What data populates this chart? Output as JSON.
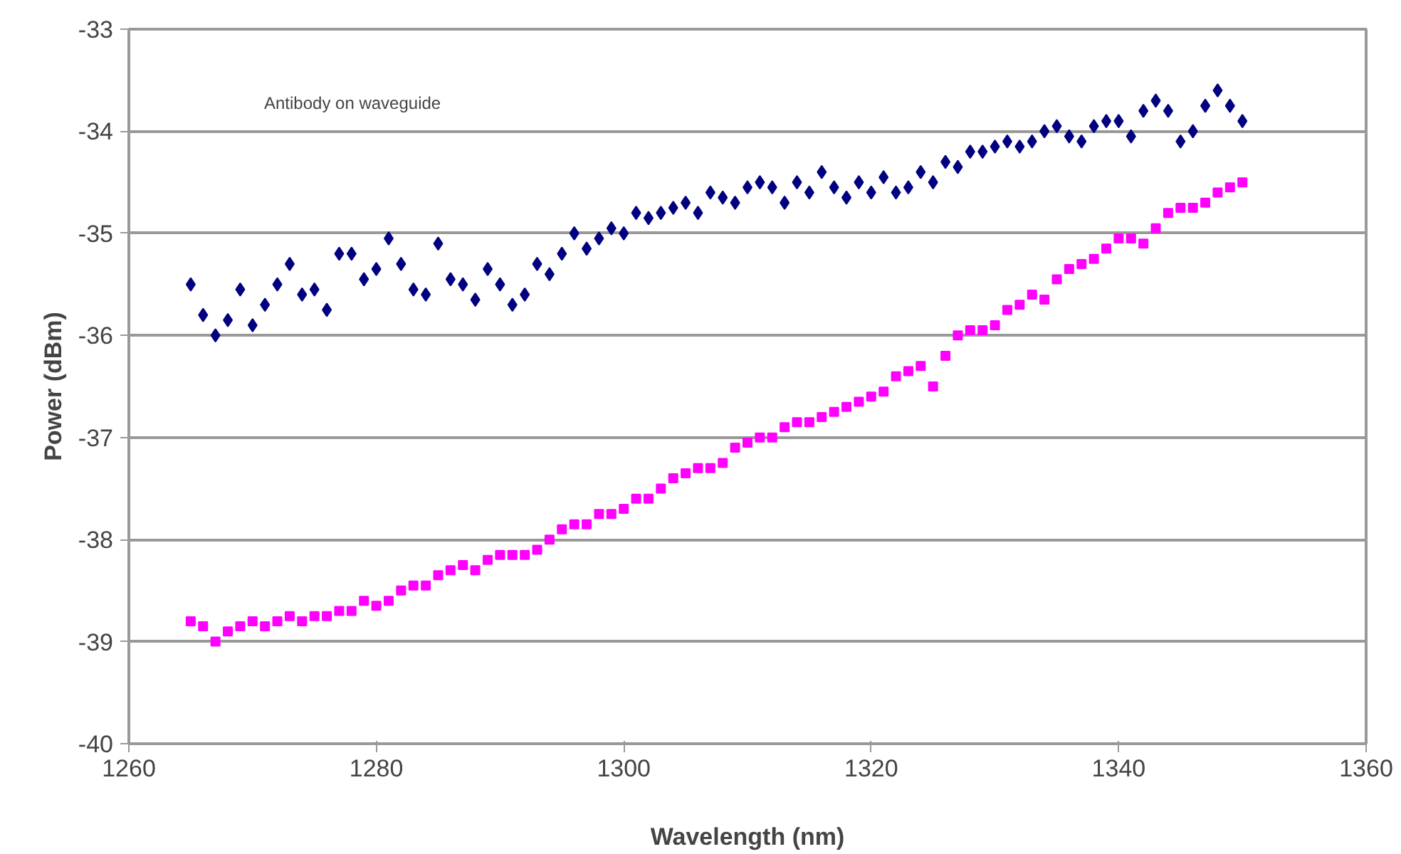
{
  "chart_data": {
    "type": "scatter",
    "xlabel": "Wavelength (nm)",
    "ylabel": "Power (dBm)",
    "xlim": [
      1260,
      1360
    ],
    "xticks": [
      1260,
      1280,
      1300,
      1320,
      1340,
      1360
    ],
    "ylim": [
      -40,
      -33
    ],
    "yticks": [
      -40,
      -39,
      -38,
      -37,
      -36,
      -35,
      -34,
      -33
    ],
    "grid": "y",
    "annotations": [
      "Antibody on waveguide"
    ],
    "x": [
      1265,
      1266,
      1267,
      1268,
      1269,
      1270,
      1271,
      1272,
      1273,
      1274,
      1275,
      1276,
      1277,
      1278,
      1279,
      1280,
      1281,
      1282,
      1283,
      1284,
      1285,
      1286,
      1287,
      1288,
      1289,
      1290,
      1291,
      1292,
      1293,
      1294,
      1295,
      1296,
      1297,
      1298,
      1299,
      1300,
      1301,
      1302,
      1303,
      1304,
      1305,
      1306,
      1307,
      1308,
      1309,
      1310,
      1311,
      1312,
      1313,
      1314,
      1315,
      1316,
      1317,
      1318,
      1319,
      1320,
      1321,
      1322,
      1323,
      1324,
      1325,
      1326,
      1327,
      1328,
      1329,
      1330,
      1331,
      1332,
      1333,
      1334,
      1335,
      1336,
      1337,
      1338,
      1339,
      1340,
      1341,
      1342,
      1343,
      1344,
      1345,
      1346,
      1347,
      1348,
      1349,
      1350
    ],
    "series": [
      {
        "color": "#000080",
        "marker": "diamond",
        "values": [
          -35.5,
          -35.8,
          -36.0,
          -35.85,
          -35.55,
          -35.9,
          -35.7,
          -35.5,
          -35.3,
          -35.6,
          -35.55,
          -35.75,
          -35.2,
          -35.2,
          -35.45,
          -35.35,
          -35.05,
          -35.3,
          -35.55,
          -35.6,
          -35.1,
          -35.45,
          -35.5,
          -35.65,
          -35.35,
          -35.5,
          -35.7,
          -35.6,
          -35.3,
          -35.4,
          -35.2,
          -35.0,
          -35.15,
          -35.05,
          -34.95,
          -35.0,
          -34.8,
          -34.85,
          -34.8,
          -34.75,
          -34.7,
          -34.8,
          -34.6,
          -34.65,
          -34.7,
          -34.55,
          -34.5,
          -34.55,
          -34.7,
          -34.5,
          -34.6,
          -34.4,
          -34.55,
          -34.65,
          -34.5,
          -34.6,
          -34.45,
          -34.6,
          -34.55,
          -34.4,
          -34.5,
          -34.3,
          -34.35,
          -34.2,
          -34.2,
          -34.15,
          -34.1,
          -34.15,
          -34.1,
          -34.0,
          -33.95,
          -34.05,
          -34.1,
          -33.95,
          -33.9,
          -33.9,
          -34.05,
          -33.8,
          -33.7,
          -33.8,
          -34.1,
          -34.0,
          -33.75,
          -33.6,
          -33.75,
          -33.9
        ]
      },
      {
        "color": "#ff00ff",
        "marker": "square",
        "values": [
          -38.8,
          -38.85,
          -39.0,
          -38.9,
          -38.85,
          -38.8,
          -38.85,
          -38.8,
          -38.75,
          -38.8,
          -38.75,
          -38.75,
          -38.7,
          -38.7,
          -38.6,
          -38.65,
          -38.6,
          -38.5,
          -38.45,
          -38.45,
          -38.35,
          -38.3,
          -38.25,
          -38.3,
          -38.2,
          -38.15,
          -38.15,
          -38.15,
          -38.1,
          -38.0,
          -37.9,
          -37.85,
          -37.85,
          -37.75,
          -37.75,
          -37.7,
          -37.6,
          -37.6,
          -37.5,
          -37.4,
          -37.35,
          -37.3,
          -37.3,
          -37.25,
          -37.1,
          -37.05,
          -37.0,
          -37.0,
          -36.9,
          -36.85,
          -36.85,
          -36.8,
          -36.75,
          -36.7,
          -36.65,
          -36.6,
          -36.55,
          -36.4,
          -36.35,
          -36.3,
          -36.5,
          -36.2,
          -36.0,
          -35.95,
          -35.95,
          -35.9,
          -35.75,
          -35.7,
          -35.6,
          -35.65,
          -35.45,
          -35.35,
          -35.3,
          -35.25,
          -35.15,
          -35.05,
          -35.05,
          -35.1,
          -34.95,
          -34.8,
          -34.75,
          -34.75,
          -34.7,
          -34.6,
          -34.55,
          -34.5
        ]
      }
    ]
  }
}
